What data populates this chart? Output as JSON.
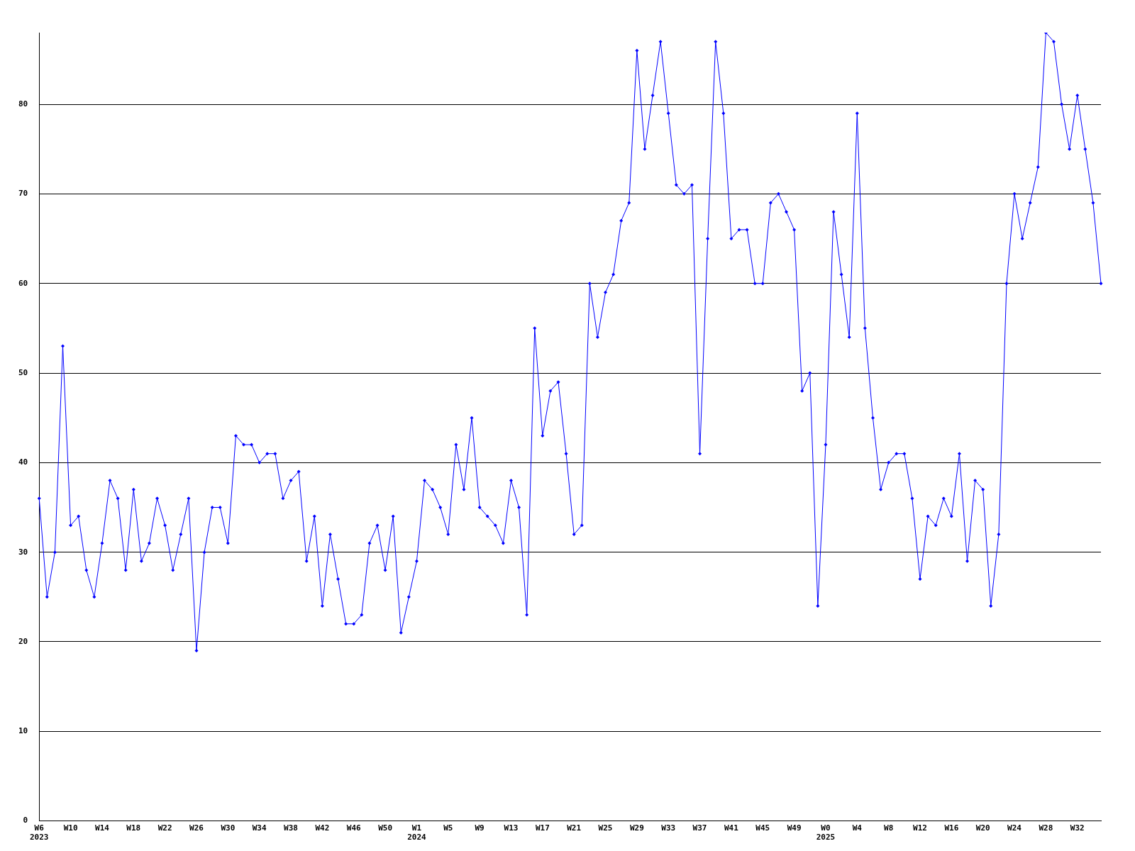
{
  "chart_data": {
    "type": "line",
    "categories": [
      "W6\n2023",
      null,
      null,
      null,
      "W10",
      null,
      null,
      null,
      "W14",
      null,
      null,
      null,
      "W18",
      null,
      null,
      null,
      "W22",
      null,
      null,
      null,
      "W26",
      null,
      null,
      null,
      "W30",
      null,
      null,
      null,
      "W34",
      null,
      null,
      null,
      "W38",
      null,
      null,
      null,
      "W42",
      null,
      null,
      null,
      "W46",
      null,
      null,
      null,
      "W50",
      null,
      null,
      null,
      "W1\n2024",
      null,
      null,
      null,
      "W5",
      null,
      null,
      null,
      "W9",
      null,
      null,
      null,
      "W13",
      null,
      null,
      null,
      "W17",
      null,
      null,
      null,
      "W21",
      null,
      null,
      null,
      "W25",
      null,
      null,
      null,
      "W29",
      null,
      null,
      null,
      "W33",
      null,
      null,
      null,
      "W37",
      null,
      null,
      null,
      "W41",
      null,
      null,
      null,
      "W45",
      null,
      null,
      null,
      "W49",
      null,
      null,
      null,
      "W0\n2025",
      null,
      null,
      null,
      "W4",
      null,
      null,
      null,
      "W8",
      null,
      null,
      null,
      "W12",
      null,
      null,
      null,
      "W16",
      null,
      null,
      null,
      "W20",
      null,
      null,
      null,
      "W24",
      null,
      null,
      null,
      "W28",
      null,
      null,
      null,
      "W32",
      null,
      null,
      null
    ],
    "series": [
      {
        "color": "#0000ff",
        "values": [
          36,
          25,
          30,
          53,
          33,
          34,
          28,
          25,
          31,
          38,
          36,
          28,
          37,
          29,
          31,
          36,
          33,
          28,
          32,
          36,
          19,
          30,
          35,
          35,
          31,
          43,
          42,
          42,
          40,
          41,
          41,
          36,
          38,
          39,
          29,
          34,
          24,
          32,
          27,
          22,
          22,
          23,
          31,
          33,
          28,
          34,
          21,
          25,
          29,
          38,
          37,
          35,
          32,
          42,
          37,
          45,
          35,
          34,
          33,
          31,
          38,
          35,
          23,
          55,
          43,
          48,
          49,
          41,
          32,
          33,
          60,
          54,
          59,
          61,
          67,
          69,
          86,
          75,
          81,
          87,
          79,
          71,
          70,
          71,
          41,
          65,
          87,
          79,
          65,
          66,
          66,
          60,
          60,
          69,
          70,
          68,
          66,
          48,
          50,
          24,
          42,
          68,
          61,
          54,
          79,
          55,
          45,
          37,
          40,
          41,
          41,
          36,
          27,
          34,
          33,
          36,
          34,
          41,
          29,
          38,
          37,
          24,
          32,
          60,
          70,
          65,
          69,
          73,
          88,
          87,
          80,
          75,
          81,
          75,
          69,
          60
        ]
      }
    ],
    "ylim": [
      0,
      88
    ],
    "yticks": [
      0,
      10,
      20,
      30,
      40,
      50,
      60,
      70,
      80
    ],
    "grid": "y",
    "legend": false,
    "marker": "diamond",
    "line_style": "solid"
  }
}
